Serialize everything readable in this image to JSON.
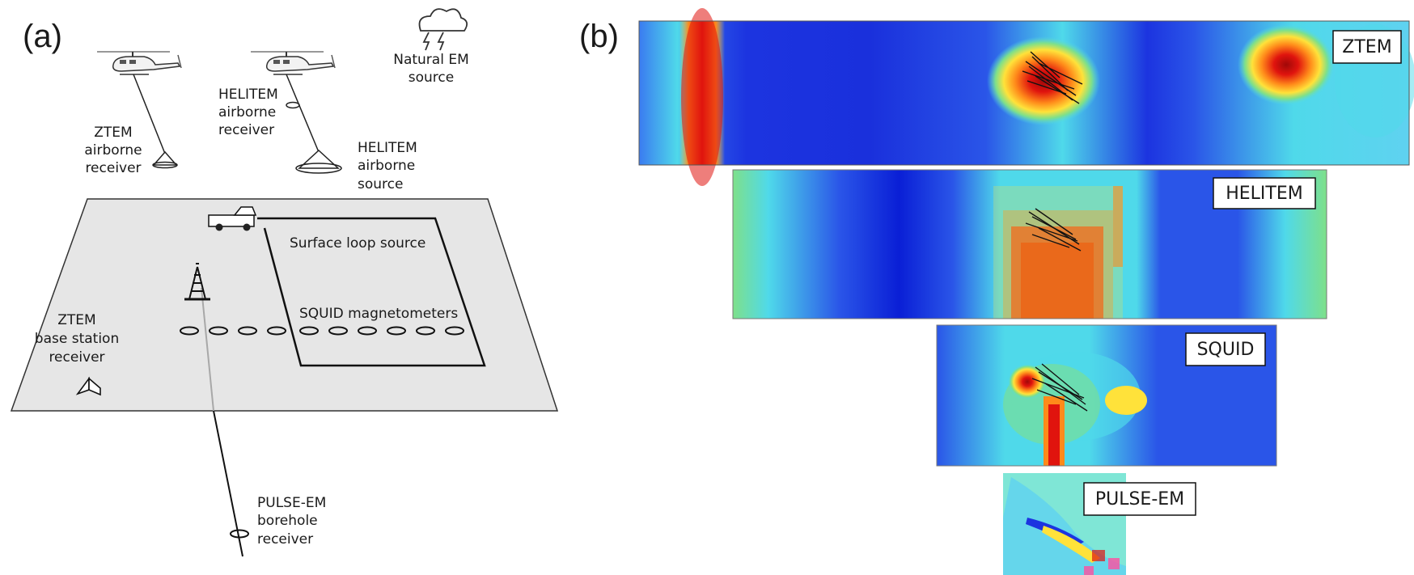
{
  "panel_a": {
    "label": "(a)",
    "natural_source": [
      "Natural EM",
      "source"
    ],
    "ztem_airborne": [
      "ZTEM",
      "airborne",
      "receiver"
    ],
    "helitem_receiver": [
      "HELITEM",
      "airborne",
      "receiver"
    ],
    "helitem_source": [
      "HELITEM",
      "airborne",
      "source"
    ],
    "surface_loop": "Surface loop source",
    "squid": "SQUID magnetometers",
    "ztem_base": [
      "ZTEM",
      "base station",
      "receiver"
    ],
    "pulse_em": [
      "PULSE-EM",
      "borehole",
      "receiver"
    ]
  },
  "panel_b": {
    "label": "(b)",
    "tags": {
      "ztem": "ZTEM",
      "helitem": "HELITEM",
      "squid": "SQUID",
      "pulse_em": "PULSE-EM"
    }
  },
  "colors": {
    "ground": "#e6e6e6",
    "deep_blue": "#0a1fd6",
    "blue": "#2a55e8",
    "cyan": "#4fd9ea",
    "green": "#7ee08a",
    "yellow": "#ffe23a",
    "orange": "#ff8a1a",
    "red": "#e0140e",
    "dark_red": "#a00808"
  }
}
